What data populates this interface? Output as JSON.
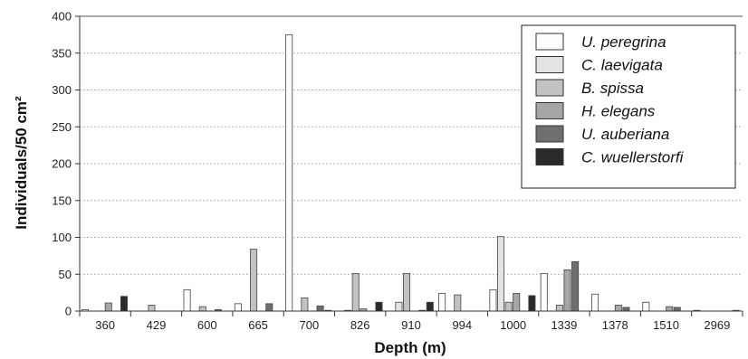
{
  "chart_data": {
    "type": "bar",
    "xlabel": "Depth (m)",
    "ylabel": "Individuals/50 cm²",
    "ylim": [
      0,
      400
    ],
    "yticks": [
      0,
      50,
      100,
      150,
      200,
      250,
      300,
      350,
      400
    ],
    "grid": "horizontal dotted",
    "legend_position": "top-right",
    "categories": [
      "360",
      "429",
      "600",
      "665",
      "700",
      "826",
      "910",
      "994",
      "1000",
      "1339",
      "1378",
      "1510",
      "2969"
    ],
    "series": [
      {
        "name": "U. peregrina",
        "color": "#fdfdfd",
        "values": [
          2,
          0,
          29,
          10,
          375,
          0,
          0,
          24,
          29,
          51,
          23,
          12,
          1
        ]
      },
      {
        "name": "C. laevigata",
        "color": "#e3e3e3",
        "values": [
          0,
          0,
          0,
          0,
          0,
          1,
          12,
          0,
          101,
          0,
          0,
          0,
          0
        ]
      },
      {
        "name": "B. spissa",
        "color": "#c2c2c2",
        "values": [
          0,
          8,
          6,
          84,
          18,
          51,
          51,
          22,
          12,
          8,
          0,
          0,
          0
        ]
      },
      {
        "name": "H. elegans",
        "color": "#a6a6a6",
        "values": [
          11,
          0,
          0,
          0,
          0,
          3,
          0,
          0,
          24,
          56,
          8,
          6,
          0
        ]
      },
      {
        "name": "U. auberiana",
        "color": "#6e6e6e",
        "values": [
          0,
          0,
          2,
          10,
          7,
          0,
          1,
          0,
          0,
          67,
          5,
          5,
          0
        ]
      },
      {
        "name": "C. wuellerstorfi",
        "color": "#2a2a2a",
        "values": [
          20,
          0,
          0,
          0,
          1,
          12,
          12,
          0,
          21,
          0,
          0,
          0,
          1
        ]
      }
    ]
  }
}
